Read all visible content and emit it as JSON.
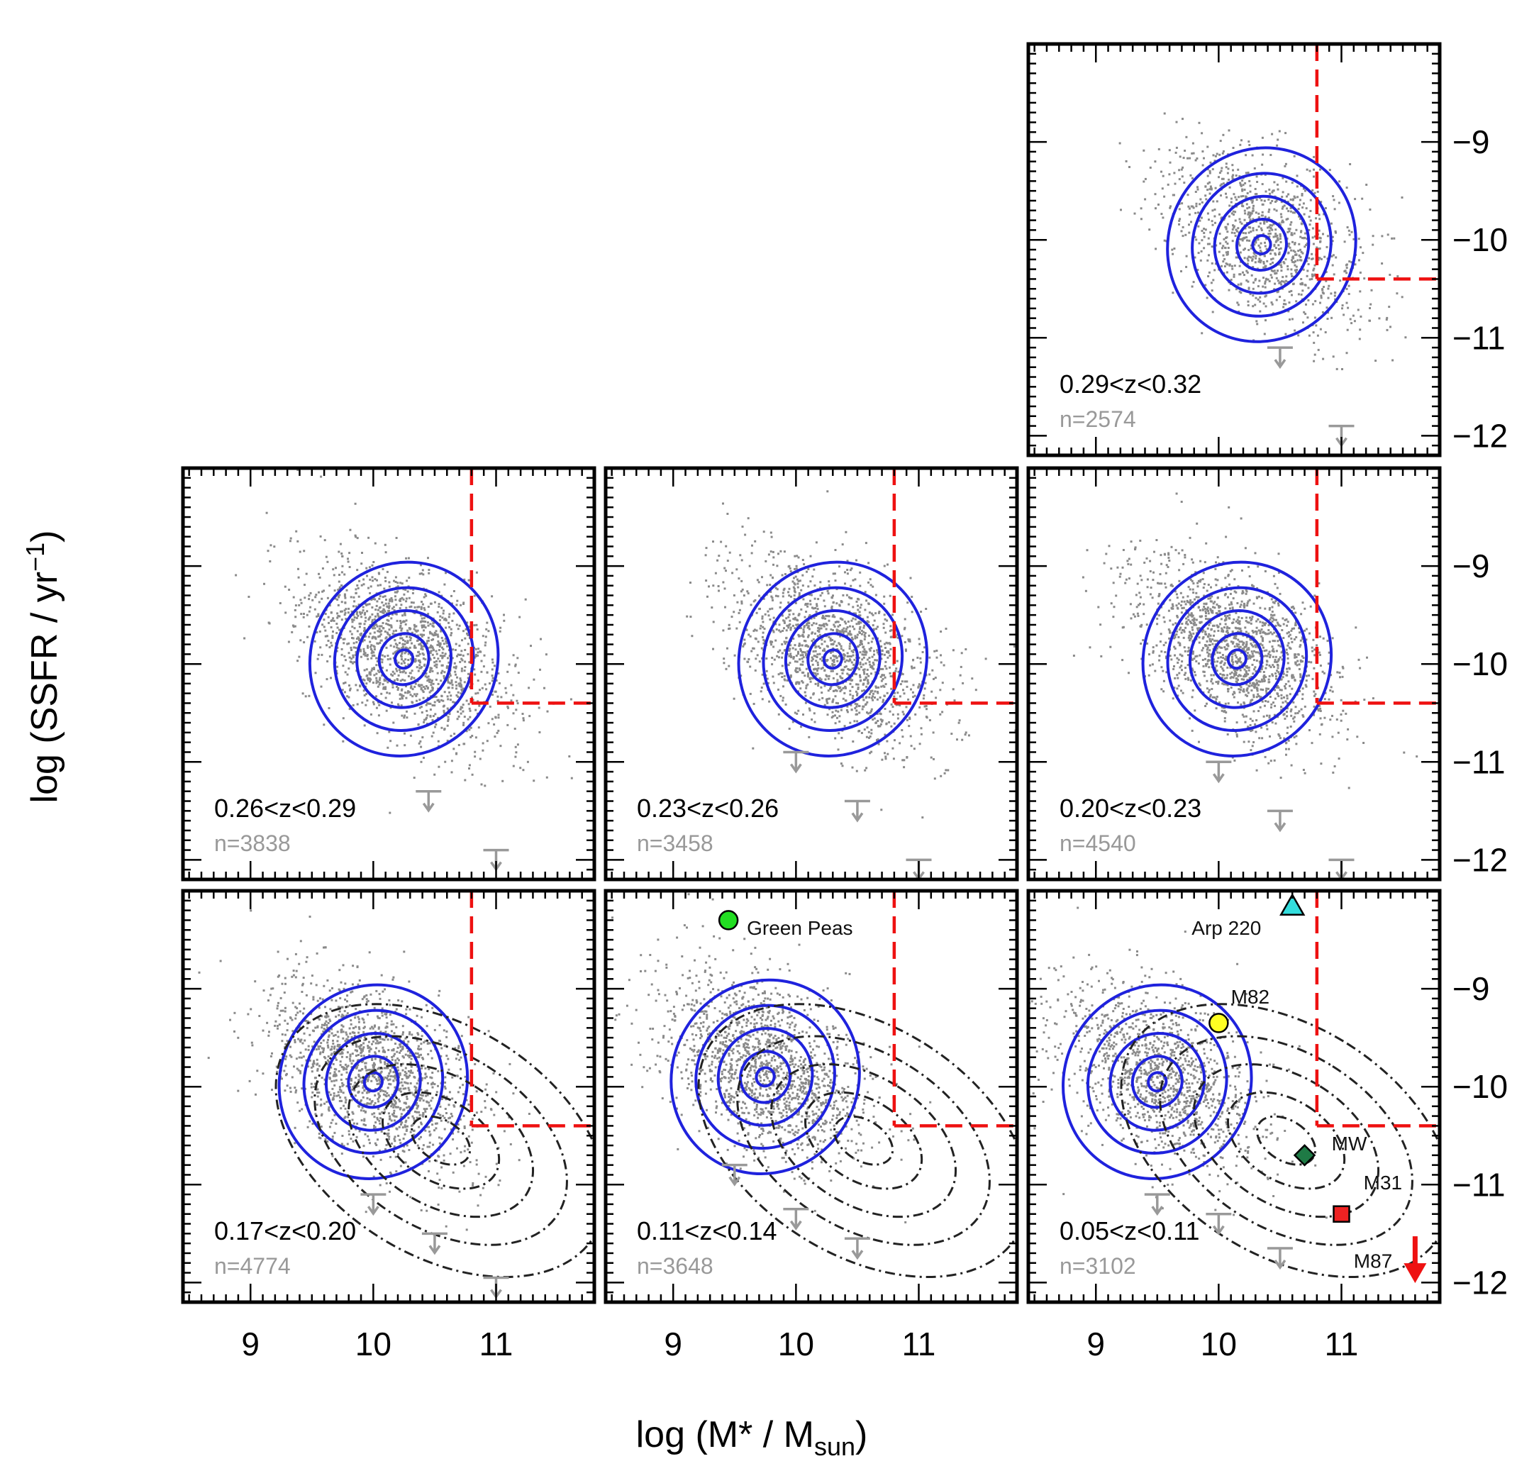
{
  "figure": {
    "xlabel_main": "log (M* / M",
    "xlabel_sub": "sun",
    "xlabel_close": ")",
    "ylabel_main": "log (SSFR / yr",
    "ylabel_sup": "−1",
    "ylabel_close": ")"
  },
  "chart_data": [
    {
      "type": "scatter",
      "redshift_label": "0.29<z<0.32",
      "n_label": "n=2574",
      "count": 2574,
      "xlim": [
        8.45,
        11.8
      ],
      "ylim": [
        -12.2,
        -8.0
      ],
      "xticks": [
        9,
        10,
        11
      ],
      "yticks": [
        -9,
        -10,
        -11,
        -12
      ],
      "cut": {
        "x": 10.8,
        "y": -10.4
      },
      "center": [
        10.35,
        -9.95
      ],
      "reference": false,
      "upper_limits": [
        [
          10.5,
          -11.1
        ],
        [
          11.0,
          -11.9
        ]
      ],
      "markers": []
    },
    {
      "type": "scatter",
      "redshift_label": "0.26<z<0.29",
      "n_label": "n=3838",
      "count": 3838,
      "xlim": [
        8.45,
        11.8
      ],
      "ylim": [
        -12.2,
        -8.0
      ],
      "xticks": [
        9,
        10,
        11
      ],
      "yticks": [
        -9,
        -10,
        -11,
        -12
      ],
      "cut": {
        "x": 10.8,
        "y": -10.4
      },
      "center": [
        10.25,
        -9.85
      ],
      "reference": false,
      "upper_limits": [
        [
          10.45,
          -11.3
        ],
        [
          11.0,
          -11.9
        ]
      ],
      "markers": []
    },
    {
      "type": "scatter",
      "redshift_label": "0.23<z<0.26",
      "n_label": "n=3458",
      "count": 3458,
      "xlim": [
        8.45,
        11.8
      ],
      "ylim": [
        -12.2,
        -8.0
      ],
      "xticks": [
        9,
        10,
        11
      ],
      "yticks": [
        -9,
        -10,
        -11,
        -12
      ],
      "cut": {
        "x": 10.8,
        "y": -10.4
      },
      "center": [
        10.3,
        -9.85
      ],
      "reference": false,
      "upper_limits": [
        [
          10.0,
          -10.9
        ],
        [
          10.5,
          -11.4
        ],
        [
          11.0,
          -12.0
        ]
      ],
      "markers": []
    },
    {
      "type": "scatter",
      "redshift_label": "0.20<z<0.23",
      "n_label": "n=4540",
      "count": 4540,
      "xlim": [
        8.45,
        11.8
      ],
      "ylim": [
        -12.2,
        -8.0
      ],
      "xticks": [
        9,
        10,
        11
      ],
      "yticks": [
        -9,
        -10,
        -11,
        -12
      ],
      "cut": {
        "x": 10.8,
        "y": -10.4
      },
      "center": [
        10.15,
        -9.85
      ],
      "reference": false,
      "upper_limits": [
        [
          10.0,
          -11.0
        ],
        [
          10.5,
          -11.5
        ],
        [
          11.0,
          -12.0
        ]
      ],
      "markers": []
    },
    {
      "type": "scatter",
      "redshift_label": "0.17<z<0.20",
      "n_label": "n=4774",
      "count": 4774,
      "xlim": [
        8.45,
        11.8
      ],
      "ylim": [
        -12.2,
        -8.0
      ],
      "xticks": [
        9,
        10,
        11
      ],
      "yticks": [
        -9,
        -10,
        -11,
        -12
      ],
      "cut": {
        "x": 10.8,
        "y": -10.4
      },
      "center": [
        10.0,
        -9.85
      ],
      "reference": true,
      "upper_limits": [
        [
          10.0,
          -11.1
        ],
        [
          10.5,
          -11.5
        ],
        [
          11.0,
          -11.95
        ]
      ],
      "markers": []
    },
    {
      "type": "scatter",
      "redshift_label": "0.11<z<0.14",
      "n_label": "n=3648",
      "count": 3648,
      "xlim": [
        8.45,
        11.8
      ],
      "ylim": [
        -12.2,
        -8.0
      ],
      "xticks": [
        9,
        10,
        11
      ],
      "yticks": [
        -9,
        -10,
        -11,
        -12
      ],
      "cut": {
        "x": 10.8,
        "y": -10.4
      },
      "center": [
        9.75,
        -9.8
      ],
      "reference": true,
      "upper_limits": [
        [
          9.5,
          -10.8
        ],
        [
          10.0,
          -11.25
        ],
        [
          10.5,
          -11.55
        ]
      ],
      "markers": [
        {
          "label": "Green Peas",
          "x": 9.45,
          "y": -8.3,
          "shape": "circle",
          "color": "#22dd22",
          "label_x": 9.6,
          "label_y": -8.45
        }
      ]
    },
    {
      "type": "scatter",
      "redshift_label": "0.05<z<0.11",
      "n_label": "n=3102",
      "count": 3102,
      "xlim": [
        8.45,
        11.8
      ],
      "ylim": [
        -12.2,
        -8.0
      ],
      "xticks": [
        9,
        10,
        11
      ],
      "yticks": [
        -9,
        -10,
        -11,
        -12
      ],
      "cut": {
        "x": 10.8,
        "y": -10.4
      },
      "center": [
        9.5,
        -9.85
      ],
      "reference": true,
      "upper_limits": [
        [
          9.5,
          -11.1
        ],
        [
          10.0,
          -11.3
        ],
        [
          10.5,
          -11.65
        ]
      ],
      "markers": [
        {
          "label": "Arp 220",
          "x": 10.6,
          "y": -8.15,
          "shape": "triangle",
          "color": "#33dddd",
          "label_x": 9.78,
          "label_y": -8.45
        },
        {
          "label": "M82",
          "x": 10.0,
          "y": -9.35,
          "shape": "circle",
          "color": "#ffff22",
          "label_x": 10.1,
          "label_y": -9.15
        },
        {
          "label": "MW",
          "x": 10.7,
          "y": -10.7,
          "shape": "diamond",
          "color": "#1e7a45",
          "label_x": 10.92,
          "label_y": -10.65
        },
        {
          "label": "M31",
          "x": 11.0,
          "y": -11.3,
          "shape": "square",
          "color": "#ee2222",
          "label_x": 11.18,
          "label_y": -11.05
        },
        {
          "label": "M87",
          "x": 11.6,
          "y": -11.6,
          "shape": "arrow",
          "color": "#ee1111",
          "label_x": 11.1,
          "label_y": -11.85
        }
      ]
    }
  ]
}
